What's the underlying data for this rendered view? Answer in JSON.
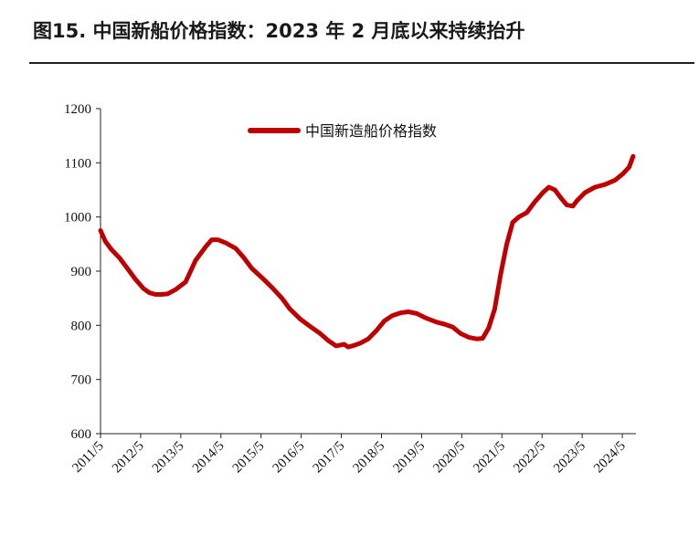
{
  "title": "图15. 中国新船价格指数：2023 年 2 月底以来持续抬升",
  "chart_data": {
    "type": "line",
    "title": "",
    "xlabel": "",
    "ylabel": "",
    "ylim": [
      600,
      1200
    ],
    "yticks": [
      "600",
      "700",
      "800",
      "900",
      "1000",
      "1100",
      "1200"
    ],
    "xticks": [
      "2011/5",
      "2012/5",
      "2013/5",
      "2014/5",
      "2015/5",
      "2016/5",
      "2017/5",
      "2018/5",
      "2019/5",
      "2020/5",
      "2021/5",
      "2022/5",
      "2023/5",
      "2024/5"
    ],
    "legend_position": "top",
    "series_color": "#c00000",
    "series": [
      {
        "name": "中国新造船价格指数",
        "points": [
          [
            2011.33,
            975
          ],
          [
            2011.45,
            955
          ],
          [
            2011.6,
            940
          ],
          [
            2011.8,
            925
          ],
          [
            2012.0,
            905
          ],
          [
            2012.2,
            885
          ],
          [
            2012.4,
            868
          ],
          [
            2012.55,
            860
          ],
          [
            2012.7,
            857
          ],
          [
            2012.85,
            857
          ],
          [
            2013.0,
            858
          ],
          [
            2013.2,
            866
          ],
          [
            2013.45,
            880
          ],
          [
            2013.7,
            920
          ],
          [
            2013.95,
            945
          ],
          [
            2014.1,
            958
          ],
          [
            2014.25,
            958
          ],
          [
            2014.45,
            952
          ],
          [
            2014.7,
            942
          ],
          [
            2014.9,
            925
          ],
          [
            2015.1,
            905
          ],
          [
            2015.35,
            888
          ],
          [
            2015.6,
            870
          ],
          [
            2015.85,
            850
          ],
          [
            2016.05,
            830
          ],
          [
            2016.3,
            812
          ],
          [
            2016.55,
            798
          ],
          [
            2016.8,
            785
          ],
          [
            2017.0,
            772
          ],
          [
            2017.2,
            762
          ],
          [
            2017.4,
            765
          ],
          [
            2017.5,
            760
          ],
          [
            2017.65,
            763
          ],
          [
            2017.8,
            767
          ],
          [
            2018.0,
            775
          ],
          [
            2018.2,
            790
          ],
          [
            2018.4,
            808
          ],
          [
            2018.6,
            818
          ],
          [
            2018.8,
            823
          ],
          [
            2019.0,
            825
          ],
          [
            2019.2,
            822
          ],
          [
            2019.45,
            813
          ],
          [
            2019.7,
            806
          ],
          [
            2019.9,
            802
          ],
          [
            2020.1,
            797
          ],
          [
            2020.3,
            785
          ],
          [
            2020.5,
            778
          ],
          [
            2020.7,
            775
          ],
          [
            2020.85,
            776
          ],
          [
            2021.0,
            795
          ],
          [
            2021.15,
            830
          ],
          [
            2021.3,
            895
          ],
          [
            2021.45,
            950
          ],
          [
            2021.6,
            990
          ],
          [
            2021.75,
            1000
          ],
          [
            2021.95,
            1008
          ],
          [
            2022.15,
            1028
          ],
          [
            2022.35,
            1045
          ],
          [
            2022.5,
            1055
          ],
          [
            2022.65,
            1050
          ],
          [
            2022.8,
            1035
          ],
          [
            2022.95,
            1022
          ],
          [
            2023.1,
            1020
          ],
          [
            2023.2,
            1030
          ],
          [
            2023.4,
            1045
          ],
          [
            2023.65,
            1055
          ],
          [
            2023.9,
            1060
          ],
          [
            2024.15,
            1068
          ],
          [
            2024.35,
            1080
          ],
          [
            2024.5,
            1092
          ],
          [
            2024.6,
            1112
          ]
        ]
      }
    ]
  }
}
